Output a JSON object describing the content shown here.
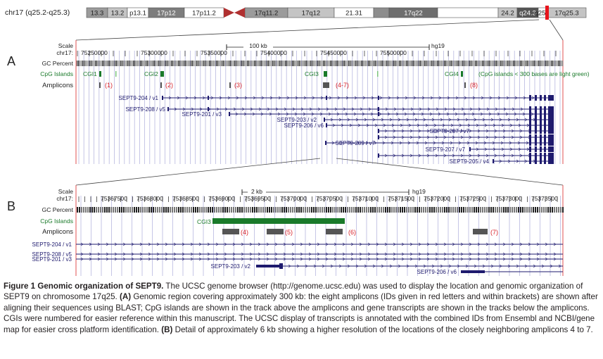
{
  "ideogram": {
    "label": "chr17 (q25.2-q25.3)",
    "bands": [
      {
        "name": "13.3",
        "color": "#9b9b9b"
      },
      {
        "name": "13.2",
        "color": "#c4c4c4"
      },
      {
        "name": "p13.1",
        "color": "#ffffff"
      },
      {
        "name": "17p12",
        "color": "#7d7d7d"
      },
      {
        "name": "17p11.2",
        "color": "#ffffff"
      },
      {
        "name": "17q11.2",
        "color": "#9b9b9b"
      },
      {
        "name": "17q12",
        "color": "#c4c4c4"
      },
      {
        "name": "21.31",
        "color": "#ffffff"
      },
      {
        "name": "",
        "color": "#8d8d8d"
      },
      {
        "name": "17q22",
        "color": "#6e6e6e"
      },
      {
        "name": "",
        "color": "#ffffff"
      },
      {
        "name": "24.2",
        "color": "#c4c4c4"
      },
      {
        "name": "q24.3",
        "color": "#555555"
      },
      {
        "name": "q25.1",
        "color": "#ffffff"
      },
      {
        "name": "17q25.3",
        "color": "#c4c4c4"
      }
    ],
    "centromere_color": "#b03030",
    "highlight_color": "#e8141c"
  },
  "panel_a": {
    "letter": "A",
    "scale_label": "Scale",
    "chrom_label": "chr17:",
    "scale_text": "100 kb",
    "assembly": "hg19",
    "positions": [
      "75250000",
      "75300000",
      "75350000",
      "75400000",
      "75450000",
      "75500000"
    ],
    "gc_label": "GC Percent",
    "cpg_label": "CpG Islands",
    "amplicons_label": "Amplicons",
    "cgi_labels": [
      "CGI1",
      "CGI2",
      "CGI3",
      "CGI4"
    ],
    "cpg_note": "(CpG islands < 300 bases are light green)",
    "amplicon_labels": [
      "(1)",
      "(2)",
      "(3)",
      "(4-7)",
      "(8)"
    ],
    "transcripts": [
      "SEPT9-204 / v1",
      "SEPT9-208 / v5",
      "SEPT9-201 / v3",
      "SEPT9-203 / v2",
      "SEPT9-206 / v6",
      "SEPT9-207 / v7",
      "SEPT9-209 / v7",
      "SEPT9-207 / v7",
      "SEPT9-205 / v4"
    ]
  },
  "panel_b": {
    "letter": "B",
    "scale_label": "Scale",
    "chrom_label": "chr17:",
    "scale_text": "2 kb",
    "assembly": "hg19",
    "positions": [
      "75367500",
      "75368000",
      "75368500",
      "75369000",
      "75369500",
      "75370000",
      "75370500",
      "75371000",
      "75371500",
      "75372000",
      "75372500",
      "75373000",
      "75373500"
    ],
    "gc_label": "GC Percent",
    "cpg_label": "CpG Islands",
    "amplicons_label": "Amplicons",
    "cgi_label": "CGI3",
    "amplicon_labels": [
      "(4)",
      "(5)",
      "(6)",
      "(7)"
    ],
    "transcripts": [
      "SEPT9-204 / v1",
      "SEPT9-208 / v5",
      "SEPT9-201 / v3",
      "SEPT9-203 / v2",
      "SEPT9-206 / v6"
    ]
  },
  "colors": {
    "transcript": "#1e1a6e",
    "cpg": "#1a7a2a",
    "cpg_light": "#7cc47c",
    "amplicon": "#555555",
    "amplicon_text": "#d8222a",
    "grid": "#b8b8e0",
    "frame": "#e05050"
  },
  "caption": {
    "title": "Figure 1 Genomic organization of SEPT9.",
    "text_1": " The UCSC genome browser (http://genome.ucsc.edu) was used to display the location and genomic organization of SEPT9 on chromosome 17q25. ",
    "label_a": "(A)",
    "text_2": " Genomic region covering approximately 300 kb: the eight amplicons (IDs given in red letters and within brackets) are shown after aligning their sequences using BLAST; CpG islands are shown in the track above the amplicons and gene transcripts are shown in the tracks below the amplicons. CGIs were numbered for easier reference within this manuscript. The UCSC display of transcripts is annotated with the combined IDs from Ensembl and NCBI/gene map for easier cross platform identification. ",
    "label_b": "(B)",
    "text_3": " Detail of approximately 6 kb showing a higher resolution of the locations of the closely neighboring amplicons 4 to 7."
  }
}
